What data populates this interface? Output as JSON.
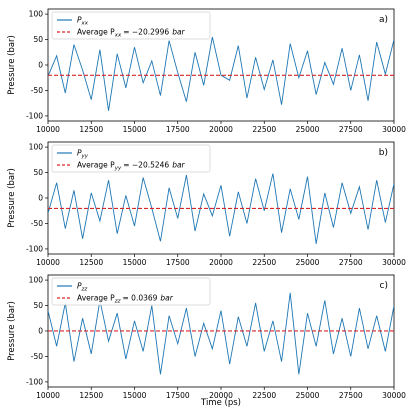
{
  "chart_data": {
    "type": "line",
    "xlabel": "Time (ps)",
    "ylabel": "Pressure (bar)",
    "xlim": [
      10000,
      30000
    ],
    "ylim": [
      -110,
      110
    ],
    "xticks": [
      "10000",
      "12500",
      "15000",
      "17500",
      "20000",
      "22500",
      "25000",
      "27500",
      "30000"
    ],
    "yticks": [
      "-100",
      "-50",
      "0",
      "50",
      "100"
    ],
    "grid": false,
    "legend_position": "top-left",
    "series_color": "#1f77b4",
    "average_color": "#d62728",
    "panels": [
      {
        "panel_label": "a)",
        "component": "xx",
        "series_label": "P",
        "average_label_prefix": "Average P",
        "average_label_value": "= −20.2996",
        "average_label_unit": "bar",
        "average": -20.2996,
        "series": {
          "x": [
            10000,
            10500,
            11000,
            11500,
            12000,
            12500,
            13000,
            13500,
            14000,
            14500,
            15000,
            15500,
            16000,
            16500,
            17000,
            17500,
            18000,
            18500,
            19000,
            19500,
            20000,
            20500,
            21000,
            21500,
            22000,
            22500,
            23000,
            23500,
            24000,
            24500,
            25000,
            25500,
            26000,
            26500,
            27000,
            27500,
            28000,
            28500,
            29000,
            29500,
            30000
          ],
          "y": [
            -22,
            18,
            -55,
            40,
            -10,
            -68,
            30,
            -90,
            22,
            -45,
            35,
            -35,
            8,
            -60,
            48,
            -15,
            -72,
            25,
            -40,
            55,
            -20,
            -30,
            38,
            -65,
            15,
            -48,
            10,
            -78,
            42,
            -25,
            28,
            -58,
            5,
            -38,
            33,
            -50,
            20,
            -70,
            45,
            -18,
            50
          ]
        }
      },
      {
        "panel_label": "b)",
        "component": "yy",
        "series_label": "P",
        "average_label_prefix": "Average P",
        "average_label_value": "= −20.5246",
        "average_label_unit": "bar",
        "average": -20.5246,
        "series": {
          "x": [
            10000,
            10500,
            11000,
            11500,
            12000,
            12500,
            13000,
            13500,
            14000,
            14500,
            15000,
            15500,
            16000,
            16500,
            17000,
            17500,
            18000,
            18500,
            19000,
            19500,
            20000,
            20500,
            21000,
            21500,
            22000,
            22500,
            23000,
            23500,
            24000,
            24500,
            25000,
            25500,
            26000,
            26500,
            27000,
            27500,
            28000,
            28500,
            29000,
            29500,
            30000
          ],
          "y": [
            -30,
            30,
            -60,
            15,
            -80,
            10,
            -45,
            35,
            -70,
            5,
            -55,
            40,
            -20,
            -85,
            20,
            -40,
            45,
            -65,
            8,
            -35,
            25,
            -75,
            12,
            -50,
            38,
            -25,
            48,
            -68,
            18,
            -42,
            42,
            -90,
            10,
            -58,
            30,
            -30,
            22,
            -62,
            35,
            -48,
            28
          ]
        }
      },
      {
        "panel_label": "c)",
        "component": "zz",
        "series_label": "P",
        "average_label_prefix": "Average P",
        "average_label_value": "= 0.0369",
        "average_label_unit": "bar",
        "average": 0.0369,
        "series": {
          "x": [
            10000,
            10500,
            11000,
            11500,
            12000,
            12500,
            13000,
            13500,
            14000,
            14500,
            15000,
            15500,
            16000,
            16500,
            17000,
            17500,
            18000,
            18500,
            19000,
            19500,
            20000,
            20500,
            21000,
            21500,
            22000,
            22500,
            23000,
            23500,
            24000,
            24500,
            25000,
            25500,
            26000,
            26500,
            27000,
            27500,
            28000,
            28500,
            29000,
            29500,
            30000
          ],
          "y": [
            40,
            -30,
            55,
            -60,
            25,
            -45,
            60,
            -20,
            35,
            -55,
            20,
            -40,
            50,
            -85,
            30,
            -25,
            45,
            -50,
            15,
            -35,
            40,
            -65,
            28,
            -30,
            55,
            -40,
            20,
            -60,
            75,
            -85,
            35,
            -30,
            60,
            -45,
            25,
            -50,
            45,
            -35,
            30,
            -40,
            50
          ]
        }
      }
    ]
  }
}
